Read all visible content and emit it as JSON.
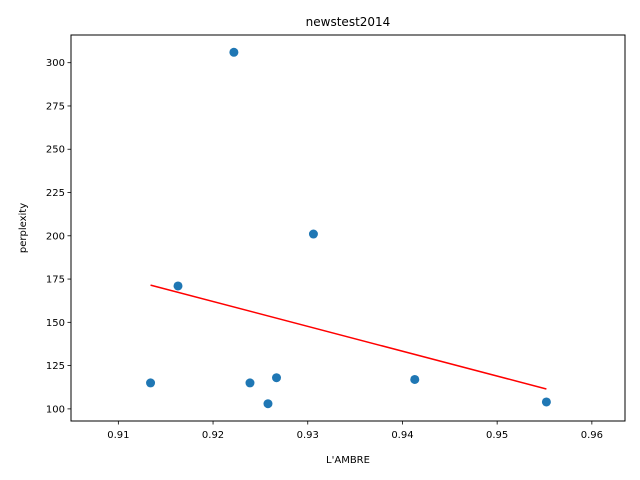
{
  "chart_data": {
    "type": "scatter",
    "title": "newstest2014",
    "xlabel": "L'AMBRE",
    "ylabel": "perplexity",
    "xlim": [
      0.905,
      0.9635
    ],
    "ylim": [
      93,
      316
    ],
    "xticks": [
      0.91,
      0.92,
      0.93,
      0.94,
      0.95,
      0.96
    ],
    "xtick_labels": [
      "0.91",
      "0.92",
      "0.93",
      "0.94",
      "0.95",
      "0.96"
    ],
    "yticks": [
      100,
      125,
      150,
      175,
      200,
      225,
      250,
      275,
      300
    ],
    "ytick_labels": [
      "100",
      "125",
      "150",
      "175",
      "200",
      "225",
      "250",
      "275",
      "300"
    ],
    "grid": false,
    "points": [
      {
        "x": 0.9222,
        "y": 306
      },
      {
        "x": 0.9306,
        "y": 201
      },
      {
        "x": 0.9163,
        "y": 171
      },
      {
        "x": 0.9134,
        "y": 115
      },
      {
        "x": 0.9239,
        "y": 115
      },
      {
        "x": 0.9267,
        "y": 118
      },
      {
        "x": 0.9258,
        "y": 103
      },
      {
        "x": 0.9413,
        "y": 117
      },
      {
        "x": 0.9552,
        "y": 104
      }
    ],
    "trendline": {
      "x": [
        0.9134,
        0.9552
      ],
      "y": [
        171.5,
        111.5
      ]
    },
    "colors": {
      "points": "#1f77b4",
      "trendline": "#ff0000",
      "axes": "#000000"
    }
  }
}
